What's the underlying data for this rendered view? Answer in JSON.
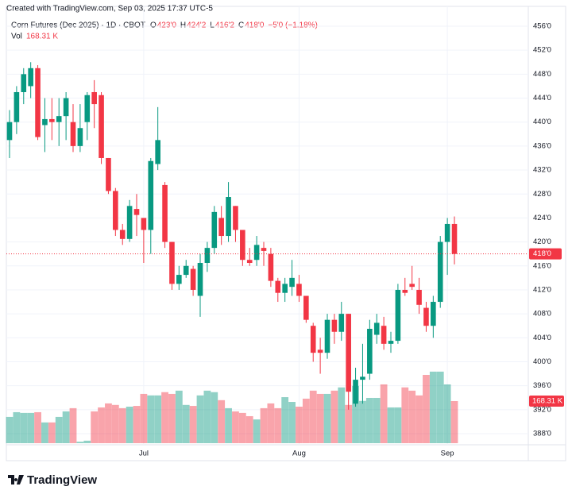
{
  "chart_data": {
    "type": "candlestick",
    "watermark": "Created with TradingView.com, Sep 03, 2025 17:37 UTC-5",
    "title": "Corn Futures (Dec 2025) · 1D · CBOT",
    "ohlc": [
      {
        "key": "O",
        "value": "423'0"
      },
      {
        "key": "H",
        "value": "424'2"
      },
      {
        "key": "L",
        "value": "416'2"
      },
      {
        "key": "C",
        "value": "418'0"
      }
    ],
    "change": "−5'0 (−1.18%)",
    "volume_title": "Vol",
    "volume_label": "168.31 K",
    "last_price_label": "418'0",
    "logo": "TradingView",
    "up_color": "#089981",
    "down_color": "#f23645",
    "categories": [
      null,
      null,
      null,
      null,
      null,
      null,
      null,
      null,
      null,
      null,
      null,
      null,
      null,
      null,
      null,
      null,
      null,
      null,
      null,
      "Jul",
      null,
      null,
      null,
      null,
      null,
      null,
      null,
      null,
      null,
      null,
      null,
      null,
      null,
      null,
      null,
      null,
      null,
      null,
      null,
      null,
      null,
      "Aug",
      null,
      null,
      null,
      null,
      null,
      null,
      null,
      null,
      null,
      null,
      null,
      null,
      null,
      null,
      null,
      null,
      null,
      null,
      null,
      null,
      "Sep",
      null
    ],
    "open": [
      437,
      440,
      445,
      446,
      449,
      439.5,
      440.5,
      440,
      441,
      440,
      436,
      440,
      445,
      444.5,
      434,
      428.5,
      422,
      420.5,
      425.5,
      424,
      422,
      433,
      429.5,
      420,
      413,
      414.5,
      415.5,
      411,
      416.5,
      419,
      424,
      421,
      426,
      422,
      417,
      417,
      419,
      418,
      413.5,
      411.5,
      412.5,
      413,
      411,
      406,
      402,
      401.5,
      407,
      405,
      408,
      393,
      397,
      398,
      404.5,
      406,
      403,
      403.5,
      412,
      413,
      412,
      409,
      406,
      410,
      420,
      423
    ],
    "high": [
      442,
      446,
      449,
      450,
      449.5,
      444,
      444,
      444,
      445,
      443,
      443,
      445,
      447,
      445,
      434,
      429,
      423,
      427,
      428,
      424,
      434,
      442.5,
      430,
      420,
      416,
      417,
      416,
      418,
      420,
      426,
      426,
      430,
      426,
      422,
      419,
      421,
      420,
      419,
      414,
      414,
      417,
      414.5,
      411,
      406.5,
      404,
      408,
      408,
      410,
      408,
      399,
      403,
      407,
      408,
      407.5,
      405,
      413,
      414,
      416,
      414,
      410,
      411,
      421,
      424,
      424.25
    ],
    "low": [
      434,
      438,
      443,
      444,
      437,
      435,
      437,
      436,
      437,
      435,
      435,
      437,
      439,
      433,
      428,
      421,
      419.5,
      420,
      421,
      416.5,
      418,
      432,
      419,
      412,
      412,
      414,
      411,
      407.5,
      415,
      418,
      419.5,
      420,
      420,
      416,
      416,
      416,
      416,
      412.5,
      410,
      410,
      411,
      410,
      406.5,
      400,
      398,
      400.5,
      403,
      403.5,
      392,
      392.5,
      393,
      397,
      403,
      402,
      401.5,
      403,
      411,
      412,
      408,
      405,
      404,
      409,
      414.5,
      416.25
    ],
    "close": [
      440,
      445,
      448,
      449,
      437.5,
      440.5,
      440,
      441,
      444,
      436,
      439,
      444.5,
      443,
      434,
      428.5,
      422,
      420.5,
      426,
      424.5,
      422,
      433.5,
      437,
      420,
      413,
      414.5,
      416,
      412,
      416.5,
      419,
      425,
      421,
      427.5,
      422,
      417,
      416.5,
      419.5,
      418.5,
      413.5,
      411.5,
      413,
      414,
      411,
      407,
      401.5,
      401.5,
      407,
      405,
      408,
      395,
      397,
      397.5,
      405.5,
      406.5,
      403,
      403.5,
      412,
      411.5,
      412.5,
      409.5,
      406,
      410,
      420,
      423,
      418
    ],
    "volume": [
      105,
      124,
      121,
      121,
      124,
      83,
      83,
      105,
      127,
      140,
      6,
      10,
      127,
      143,
      159,
      153,
      140,
      146,
      149,
      197,
      191,
      191,
      204,
      197,
      210,
      153,
      149,
      191,
      210,
      204,
      172,
      140,
      127,
      121,
      108,
      95,
      140,
      159,
      140,
      184,
      165,
      146,
      178,
      210,
      197,
      197,
      210,
      223,
      153,
      229,
      169,
      181,
      181,
      235,
      143,
      143,
      223,
      210,
      191,
      273,
      286,
      286,
      235,
      168.31
    ],
    "ylim": [
      388,
      456
    ],
    "yticks": [
      {
        "value": 388,
        "label": "388'0"
      },
      {
        "value": 392,
        "label": "392'0"
      },
      {
        "value": 396,
        "label": "396'0"
      },
      {
        "value": 400,
        "label": "400'0"
      },
      {
        "value": 404,
        "label": "404'0"
      },
      {
        "value": 408,
        "label": "408'0"
      },
      {
        "value": 412,
        "label": "412'0"
      },
      {
        "value": 416,
        "label": "416'0"
      },
      {
        "value": 420,
        "label": "420'0"
      },
      {
        "value": 424,
        "label": "424'0"
      },
      {
        "value": 428,
        "label": "428'0"
      },
      {
        "value": 432,
        "label": "432'0"
      },
      {
        "value": 436,
        "label": "436'0"
      },
      {
        "value": 440,
        "label": "440'0"
      },
      {
        "value": 444,
        "label": "444'0"
      },
      {
        "value": 448,
        "label": "448'0"
      },
      {
        "value": 452,
        "label": "452'0"
      },
      {
        "value": 456,
        "label": "456'0"
      }
    ],
    "grid": true
  }
}
